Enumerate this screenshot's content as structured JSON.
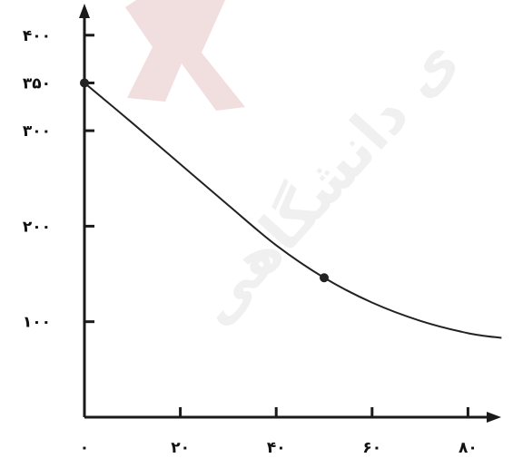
{
  "colors": {
    "axis": "#1a1a1a",
    "curve": "#222222",
    "point": "#222222",
    "watermark_logo": "#f1dede",
    "watermark_text": "#f0f0f0"
  },
  "watermark": {
    "text": "ی دانشگاهی"
  },
  "chart_data": {
    "type": "line",
    "title": "",
    "xlabel": "",
    "ylabel": "",
    "xlim": [
      0,
      85
    ],
    "ylim": [
      0,
      420
    ],
    "x_ticks": [
      {
        "value": 0,
        "label": "۰"
      },
      {
        "value": 20,
        "label": "۲۰"
      },
      {
        "value": 40,
        "label": "۴۰"
      },
      {
        "value": 60,
        "label": "۶۰"
      },
      {
        "value": 80,
        "label": "۸۰"
      }
    ],
    "y_ticks": [
      {
        "value": 100,
        "label": "۱۰۰"
      },
      {
        "value": 200,
        "label": "۲۰۰"
      },
      {
        "value": 300,
        "label": "۳۰۰"
      },
      {
        "value": 350,
        "label": "۳۵۰"
      },
      {
        "value": 400,
        "label": "۴۰۰"
      }
    ],
    "grid": false,
    "series": [
      {
        "x": [
          0,
          10,
          20,
          30,
          40,
          50,
          60,
          70,
          80,
          87
        ],
        "y": [
          350,
          308,
          265,
          222,
          180,
          146,
          120,
          101,
          88,
          83
        ]
      }
    ],
    "highlight_points": [
      {
        "x": 0,
        "y": 350
      },
      {
        "x": 50,
        "y": 146
      }
    ]
  }
}
